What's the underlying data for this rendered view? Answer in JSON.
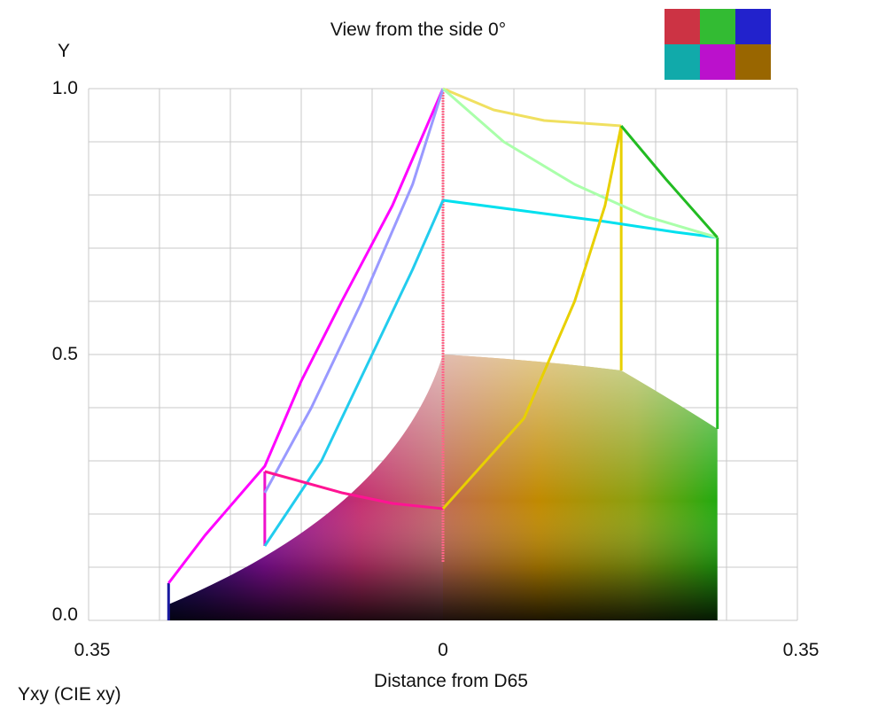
{
  "chart_data": {
    "type": "area",
    "title": "View from the side 0°",
    "xlabel": "Distance from D65",
    "ylabel": "Y",
    "footer": "Yxy (CIE xy)",
    "x_tick_labels": [
      "0.35",
      "0",
      "0.35"
    ],
    "y_tick_labels": [
      "0.0",
      "0.5",
      "1.0"
    ],
    "xlim": [
      -0.35,
      0.35
    ],
    "ylim": [
      0,
      1
    ],
    "grid": true,
    "series": [
      {
        "color": "#ff00ff",
        "points": [
          [
            -0.271,
            0.07
          ],
          [
            -0.235,
            0.16
          ],
          [
            -0.176,
            0.29
          ],
          [
            -0.14,
            0.45
          ],
          [
            -0.1,
            0.6
          ],
          [
            -0.05,
            0.78
          ],
          [
            0,
            1.0
          ]
        ]
      },
      {
        "color": "#22ccee",
        "points": [
          [
            -0.176,
            0.14
          ],
          [
            -0.12,
            0.3
          ],
          [
            -0.07,
            0.5
          ],
          [
            -0.03,
            0.66
          ],
          [
            0,
            0.79
          ]
        ]
      },
      {
        "color": "#9999ff",
        "points": [
          [
            -0.176,
            0.24
          ],
          [
            -0.13,
            0.4
          ],
          [
            -0.08,
            0.6
          ],
          [
            -0.03,
            0.82
          ],
          [
            0,
            1.0
          ]
        ]
      },
      {
        "color": "#ff1493",
        "points": [
          [
            -0.176,
            0.28
          ],
          [
            -0.1,
            0.24
          ],
          [
            -0.05,
            0.22
          ],
          [
            0,
            0.21
          ]
        ]
      },
      {
        "color": "#00e0ee",
        "points": [
          [
            0,
            0.79
          ],
          [
            0.08,
            0.77
          ],
          [
            0.16,
            0.75
          ],
          [
            0.23,
            0.73
          ],
          [
            0.271,
            0.72
          ]
        ]
      },
      {
        "color": "#f0e060",
        "points": [
          [
            0,
            1.0
          ],
          [
            0.05,
            0.96
          ],
          [
            0.1,
            0.94
          ],
          [
            0.176,
            0.93
          ]
        ]
      },
      {
        "color": "#aaffaa",
        "points": [
          [
            0,
            1.0
          ],
          [
            0.06,
            0.9
          ],
          [
            0.13,
            0.82
          ],
          [
            0.2,
            0.76
          ],
          [
            0.271,
            0.72
          ]
        ]
      },
      {
        "color": "#e8d000",
        "points": [
          [
            0,
            0.21
          ],
          [
            0.08,
            0.38
          ],
          [
            0.13,
            0.6
          ],
          [
            0.16,
            0.78
          ],
          [
            0.176,
            0.93
          ]
        ]
      },
      {
        "color": "#22bb22",
        "points": [
          [
            0.176,
            0.93
          ],
          [
            0.22,
            0.83
          ],
          [
            0.271,
            0.72
          ]
        ]
      }
    ]
  },
  "thumbnail": {
    "colors": [
      "#cc3344",
      "#33bb33",
      "#2222cc",
      "#11aaaa",
      "#bb11cc",
      "#996600"
    ]
  }
}
